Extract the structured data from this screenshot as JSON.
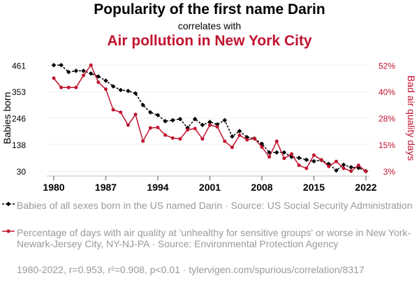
{
  "title": "Popularity of the first name Darin",
  "subtitle": "correlates with",
  "title2": "Air pollution in New York City",
  "footer": "1980-2022, r=0.953, r²=0.908, p<0.01 · tylervigen.com/spurious/correlation/8317",
  "chart_data": {
    "type": "line",
    "x": [
      1980,
      1981,
      1982,
      1983,
      1984,
      1985,
      1986,
      1987,
      1988,
      1989,
      1990,
      1991,
      1992,
      1993,
      1994,
      1995,
      1996,
      1997,
      1998,
      1999,
      2000,
      2001,
      2002,
      2003,
      2004,
      2005,
      2006,
      2007,
      2008,
      2009,
      2010,
      2011,
      2012,
      2013,
      2014,
      2015,
      2016,
      2017,
      2018,
      2019,
      2020,
      2021,
      2022
    ],
    "xticks": [
      "1980",
      "1987",
      "1994",
      "2001",
      "2008",
      "2015",
      "2022"
    ],
    "ylabel_left": "Babies born",
    "ylabel_right": "Bad air quality days",
    "yticks_left": [
      "461",
      "353",
      "246",
      "138",
      "30"
    ],
    "yticks_right": [
      "52%",
      "40%",
      "28%",
      "15%",
      "3%"
    ],
    "ylim_left": [
      30,
      461
    ],
    "ylim_right": [
      3,
      52
    ],
    "grid": true,
    "series": [
      {
        "name": "Babies of all sexes born in the US named Darin · Source: US Social Security Administration",
        "axis": "left",
        "color": "#000000",
        "style": "dashed",
        "values": [
          461,
          461,
          433,
          438,
          438,
          427,
          415,
          398,
          375,
          360,
          356,
          346,
          299,
          269,
          258,
          233,
          237,
          242,
          206,
          242,
          218,
          230,
          220,
          237,
          171,
          193,
          168,
          163,
          141,
          106,
          106,
          106,
          88,
          84,
          76,
          70,
          75,
          59,
          33,
          56,
          46,
          43,
          30
        ]
      },
      {
        "name": "Percentage of days with air quality at 'unhealthy for sensitive groups' or worse in New York-Newark-Jersey City, NY-NJ-PA · Source: Environmental Protection Agency",
        "axis": "right",
        "color": "#c0132f",
        "style": "solid",
        "values": [
          46.0,
          41.7,
          41.7,
          41.7,
          47.3,
          52.0,
          44.1,
          40.9,
          31.4,
          30.2,
          24.3,
          29.2,
          16.9,
          23.0,
          23.2,
          19.7,
          18.3,
          17.9,
          22.1,
          22.7,
          17.9,
          24.3,
          23.5,
          16.8,
          14.0,
          19.6,
          17.5,
          18.1,
          14.1,
          9.6,
          16.8,
          8.9,
          10.9,
          5.7,
          4.3,
          10.4,
          8.2,
          5.2,
          7.5,
          4.3,
          3.0,
          5.7,
          2.9
        ]
      }
    ]
  }
}
